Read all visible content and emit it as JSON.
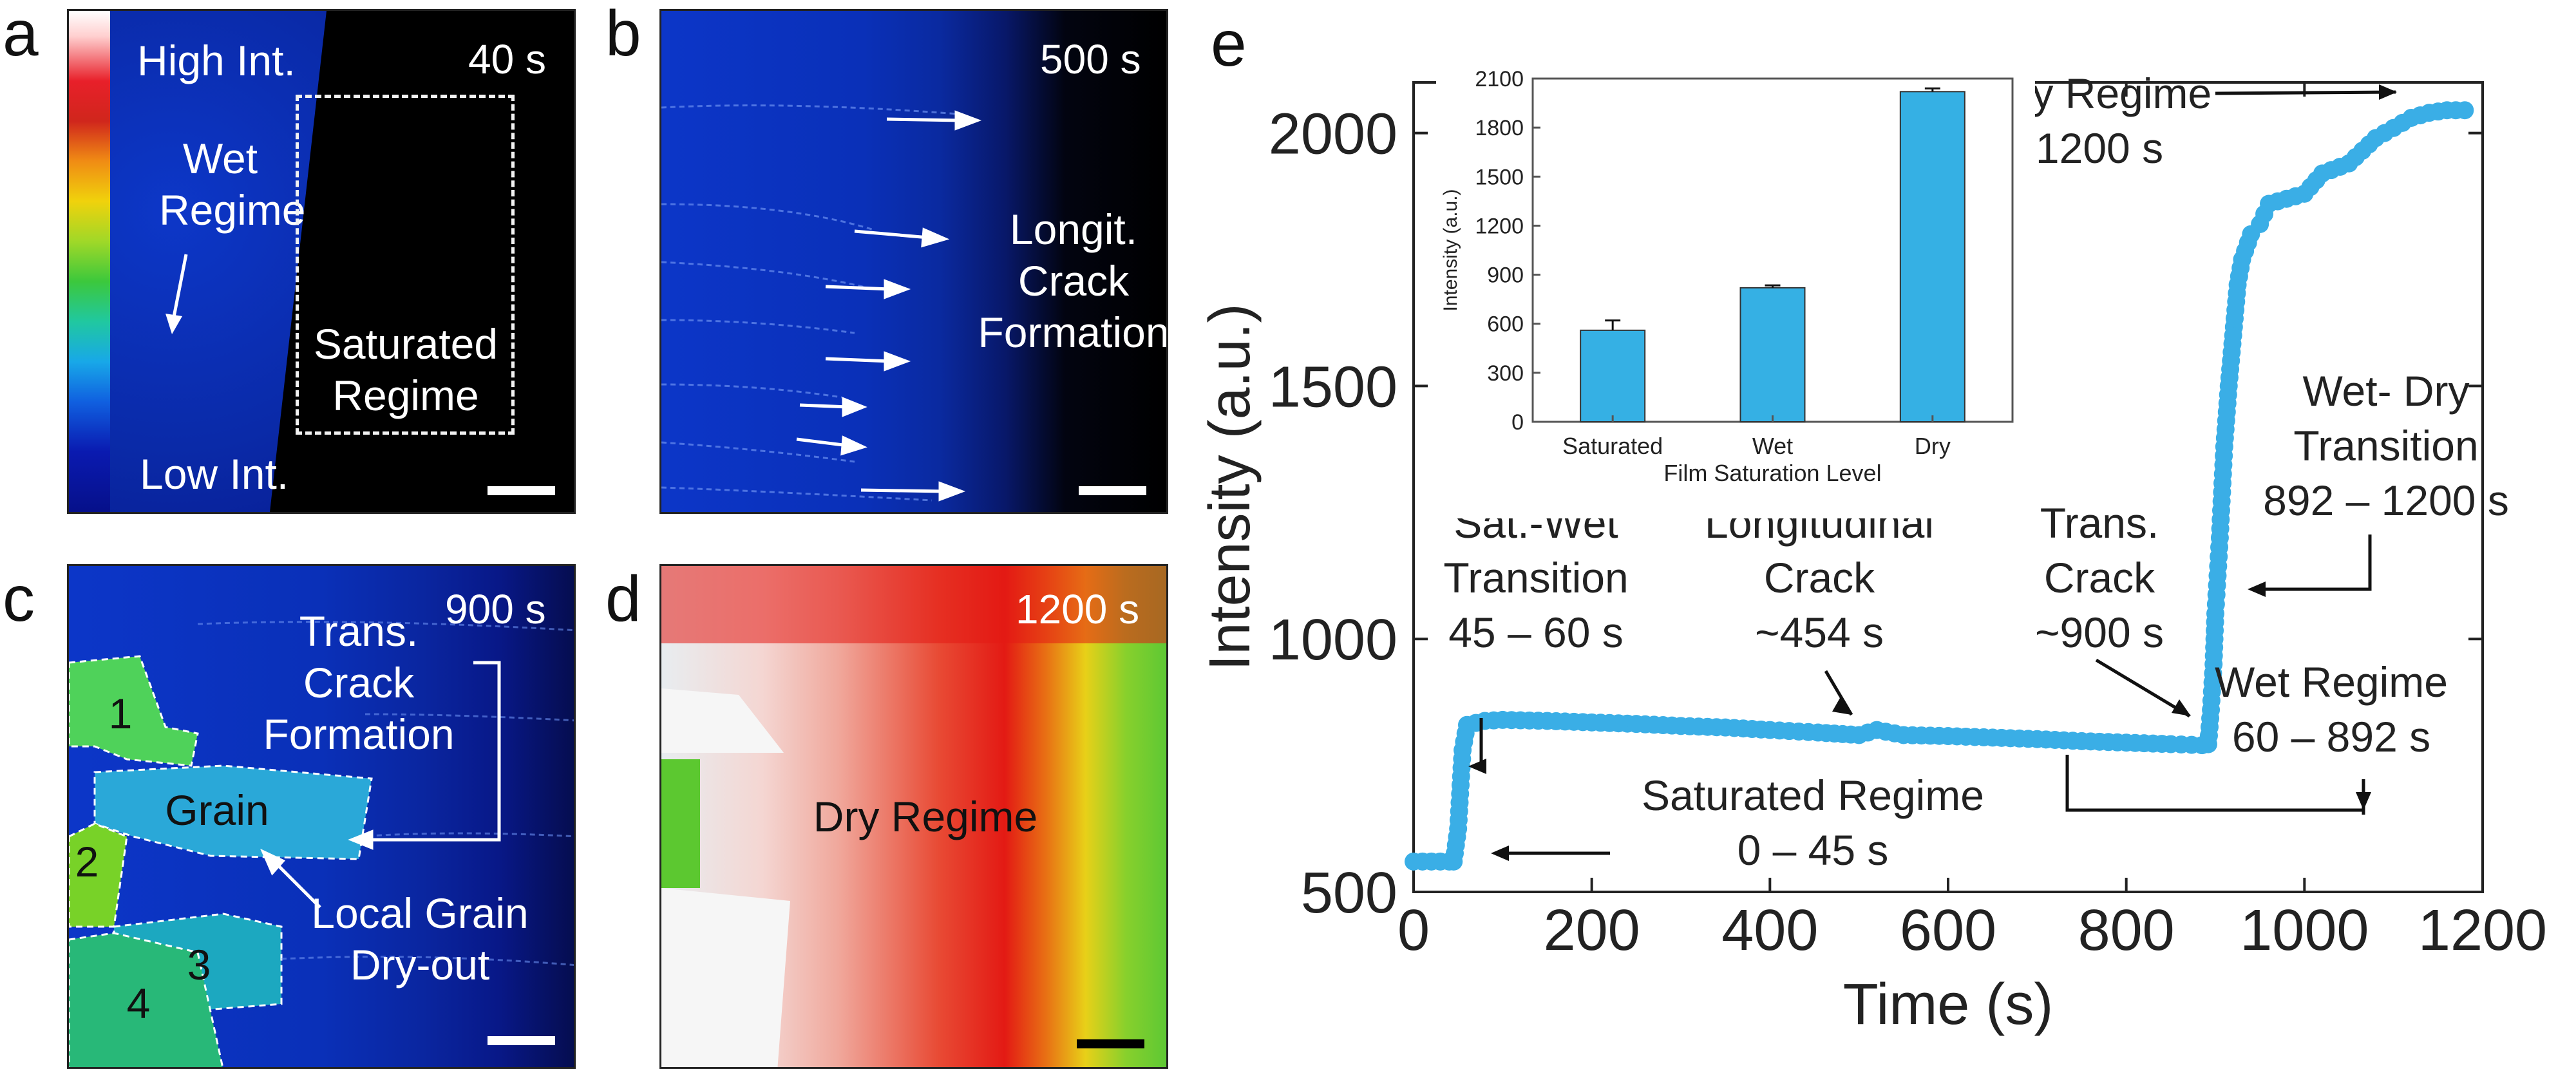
{
  "panels": {
    "a": {
      "label": "a",
      "time": "40 s",
      "colorbar_high": "High Int.",
      "colorbar_low": "Low Int.",
      "wet_line1": "Wet",
      "wet_line2": "Regime",
      "sat_line1": "Saturated",
      "sat_line2": "Regime"
    },
    "b": {
      "label": "b",
      "time": "500 s",
      "note_line1": "Longit.",
      "note_line2": "Crack",
      "note_line3": "Formation"
    },
    "c": {
      "label": "c",
      "time": "900 s",
      "trans_line1": "Trans.",
      "trans_line2": "Crack",
      "trans_line3": "Formation",
      "grain": "Grain",
      "local_line1": "Local Grain",
      "local_line2": "Dry-out",
      "n1": "1",
      "n2": "2",
      "n3": "3",
      "n4": "4"
    },
    "d": {
      "label": "d",
      "time": "1200 s",
      "regime": "Dry Regime"
    },
    "e": {
      "label": "e"
    }
  },
  "colors": {
    "series": "#3aaee6",
    "bar": "#35b0e4",
    "panel_blue": "#0a2ec0",
    "red": "#e31a14",
    "green": "#63c832"
  },
  "annotations": {
    "dry_line1": "Dry Regime",
    "dry_line2": "1200 s",
    "wetdry_line1": "Wet- Dry",
    "wetdry_line2": "Transition",
    "wetdry_line3": "892 – 1200 s",
    "satwet_line1": "Sat.-Wet",
    "satwet_line2": "Transition",
    "satwet_line3": "45 – 60 s",
    "long_line1": "Longitudinal",
    "long_line2": "Crack",
    "long_line3": "~454 s",
    "trans_line1": "Trans.",
    "trans_line2": "Crack",
    "trans_line3": "~900 s",
    "wet_line1": "Wet Regime",
    "wet_line2": "60 – 892 s",
    "sat_line1": "Saturated Regime",
    "sat_line2": "0 – 45 s"
  },
  "chart_data": [
    {
      "type": "scatter",
      "xlabel": "Time (s)",
      "ylabel": "Intensity (a.u.)",
      "xlim": [
        0,
        1200
      ],
      "ylim": [
        500,
        2100
      ],
      "xticks": [
        0,
        200,
        400,
        600,
        800,
        1000,
        1200
      ],
      "yticks": [
        500,
        1000,
        1500,
        2000
      ],
      "series": [
        {
          "x": [
            0,
            10,
            20,
            30,
            40,
            45,
            50,
            55,
            60,
            80,
            100,
            150,
            200,
            250,
            300,
            350,
            400,
            454,
            500,
            520,
            550,
            600,
            650,
            700,
            750,
            800,
            850,
            885,
            892,
            895,
            898,
            900,
            905,
            910,
            915,
            920,
            925,
            930,
            940,
            950,
            960,
            980,
            1000,
            1020,
            1050,
            1080,
            1100,
            1120,
            1140,
            1160,
            1180
          ],
          "y": [
            560,
            560,
            560,
            560,
            560,
            560,
            625,
            780,
            830,
            838,
            840,
            838,
            835,
            832,
            828,
            825,
            820,
            815,
            810,
            820,
            810,
            808,
            805,
            802,
            798,
            795,
            792,
            790,
            792,
            860,
            950,
            1050,
            1200,
            1380,
            1500,
            1600,
            1700,
            1750,
            1800,
            1820,
            1860,
            1870,
            1880,
            1920,
            1940,
            1990,
            2010,
            2030,
            2040,
            2045,
            2045
          ]
        }
      ]
    },
    {
      "type": "bar",
      "xlabel": "Film Saturation Level",
      "ylabel": "Intensity (a.u.)",
      "categories": [
        "Saturated",
        "Wet",
        "Dry"
      ],
      "values": [
        560,
        820,
        2020
      ],
      "errors": [
        60,
        15,
        20
      ],
      "ylim": [
        0,
        2100
      ],
      "yticks": [
        0,
        300,
        600,
        900,
        1200,
        1500,
        1800,
        2100
      ]
    }
  ]
}
